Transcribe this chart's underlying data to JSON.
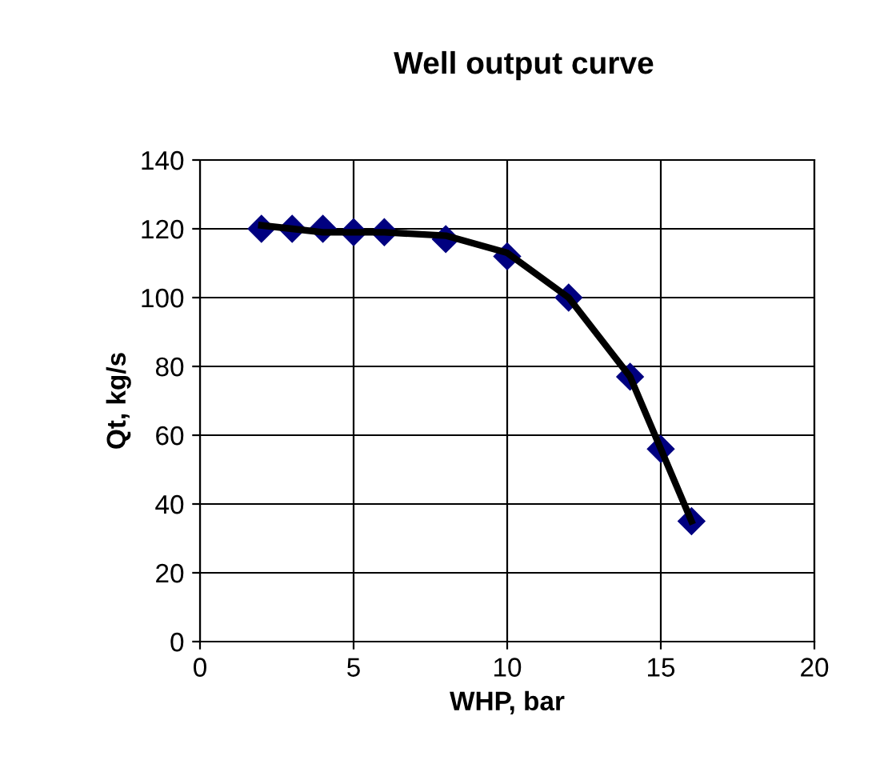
{
  "chart_data": {
    "type": "scatter",
    "title": "Well output curve",
    "xlabel": "WHP, bar",
    "ylabel": "Qt, kg/s",
    "x": [
      2,
      3,
      4,
      5,
      6,
      8,
      10,
      12,
      14,
      15,
      16
    ],
    "series": [
      {
        "color": "#000080",
        "marker": "diamond",
        "values": [
          120,
          120,
          120,
          119,
          119,
          117,
          112,
          100,
          77,
          56,
          35
        ]
      },
      {
        "type": "line",
        "color": "#000000",
        "marker": "none",
        "line_style": "solid",
        "values": [
          121,
          120,
          119,
          119,
          119,
          118,
          113,
          100,
          77,
          56,
          35
        ]
      }
    ],
    "xlim": [
      0,
      20
    ],
    "xticks": [
      0,
      5,
      10,
      15,
      20
    ],
    "ylim": [
      0,
      140
    ],
    "yticks": [
      0,
      20,
      40,
      60,
      80,
      100,
      120,
      140
    ],
    "grid": true,
    "legend": false
  }
}
